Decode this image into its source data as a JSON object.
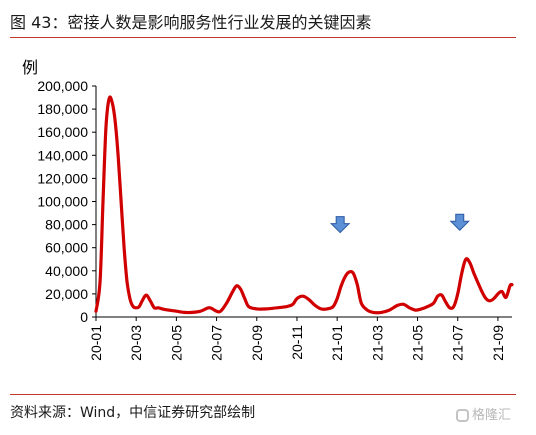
{
  "header": {
    "title": "图 43：密接人数是影响服务性行业发展的关键因素"
  },
  "footer": {
    "source": "资料来源：Wind，中信证券研究部绘制"
  },
  "watermark": {
    "text": "格隆汇"
  },
  "colors": {
    "line": "#d10000",
    "rule": "#c0392b",
    "arrow_fill": "#5b8fd6",
    "arrow_stroke": "#2c5aa0"
  },
  "chart_data": {
    "type": "line",
    "title": "",
    "ylabel": "例",
    "xlabel": "",
    "ylim": [
      0,
      200000
    ],
    "y_ticks": [
      0,
      20000,
      40000,
      60000,
      80000,
      100000,
      120000,
      140000,
      160000,
      180000,
      200000
    ],
    "y_tick_labels": [
      "0",
      "20,000",
      "40,000",
      "60,000",
      "80,000",
      "100,000",
      "120,000",
      "140,000",
      "160,000",
      "180,000",
      "200,000"
    ],
    "x_tick_labels": [
      "20-01",
      "20-03",
      "20-05",
      "20-07",
      "20-09",
      "20-11",
      "21-01",
      "21-03",
      "21-05",
      "21-07",
      "21-09"
    ],
    "grid": false,
    "series": [
      {
        "x": [
          0.0,
          0.2,
          0.35,
          0.5,
          0.65,
          0.8,
          0.95,
          1.1,
          1.25,
          1.4,
          1.55,
          1.7,
          1.85,
          2.0,
          2.15,
          2.3,
          2.5,
          2.7,
          2.9,
          3.1,
          3.3,
          3.6,
          4.0,
          4.4,
          4.8,
          5.2,
          5.6,
          5.8,
          6.0,
          6.2,
          6.5,
          6.8,
          7.0,
          7.2,
          7.4,
          7.6,
          8.0,
          8.5,
          9.0,
          9.5,
          9.8,
          10.0,
          10.3,
          10.6,
          10.9,
          11.2,
          11.5,
          11.8,
          12.0,
          12.2,
          12.4,
          12.6,
          12.8,
          13.0,
          13.2,
          13.5,
          13.8,
          14.2,
          14.6,
          15.0,
          15.3,
          15.6,
          15.9,
          16.2,
          16.5,
          16.8,
          17.0,
          17.2,
          17.4,
          17.6,
          17.8,
          18.0,
          18.2,
          18.4,
          18.6,
          18.8,
          19.0,
          19.2,
          19.4,
          19.6,
          19.8,
          20.0,
          20.2,
          20.4,
          20.6,
          20.7
        ],
        "values": [
          5000,
          30000,
          100000,
          165000,
          189000,
          186000,
          170000,
          140000,
          100000,
          60000,
          30000,
          15000,
          9000,
          8000,
          9000,
          14000,
          19000,
          14000,
          8000,
          8000,
          7000,
          6000,
          5000,
          4000,
          4000,
          5000,
          8000,
          7000,
          5000,
          5000,
          12000,
          22000,
          27000,
          24000,
          16000,
          9000,
          7000,
          7000,
          8000,
          9000,
          11000,
          16000,
          18000,
          15000,
          10000,
          7000,
          7000,
          9000,
          16000,
          27000,
          35000,
          39000,
          38000,
          28000,
          12000,
          6000,
          4000,
          4000,
          6000,
          10000,
          11000,
          8000,
          6000,
          7000,
          9000,
          12000,
          18000,
          19000,
          13000,
          8000,
          9000,
          20000,
          38000,
          50000,
          47000,
          38000,
          30000,
          22000,
          16000,
          14000,
          16000,
          20000,
          22000,
          17000,
          27000,
          28000
        ]
      }
    ],
    "annotations": [
      {
        "type": "arrow-down",
        "x": 12.15,
        "y": 80000
      },
      {
        "type": "arrow-down",
        "x": 18.1,
        "y": 82000
      }
    ]
  }
}
